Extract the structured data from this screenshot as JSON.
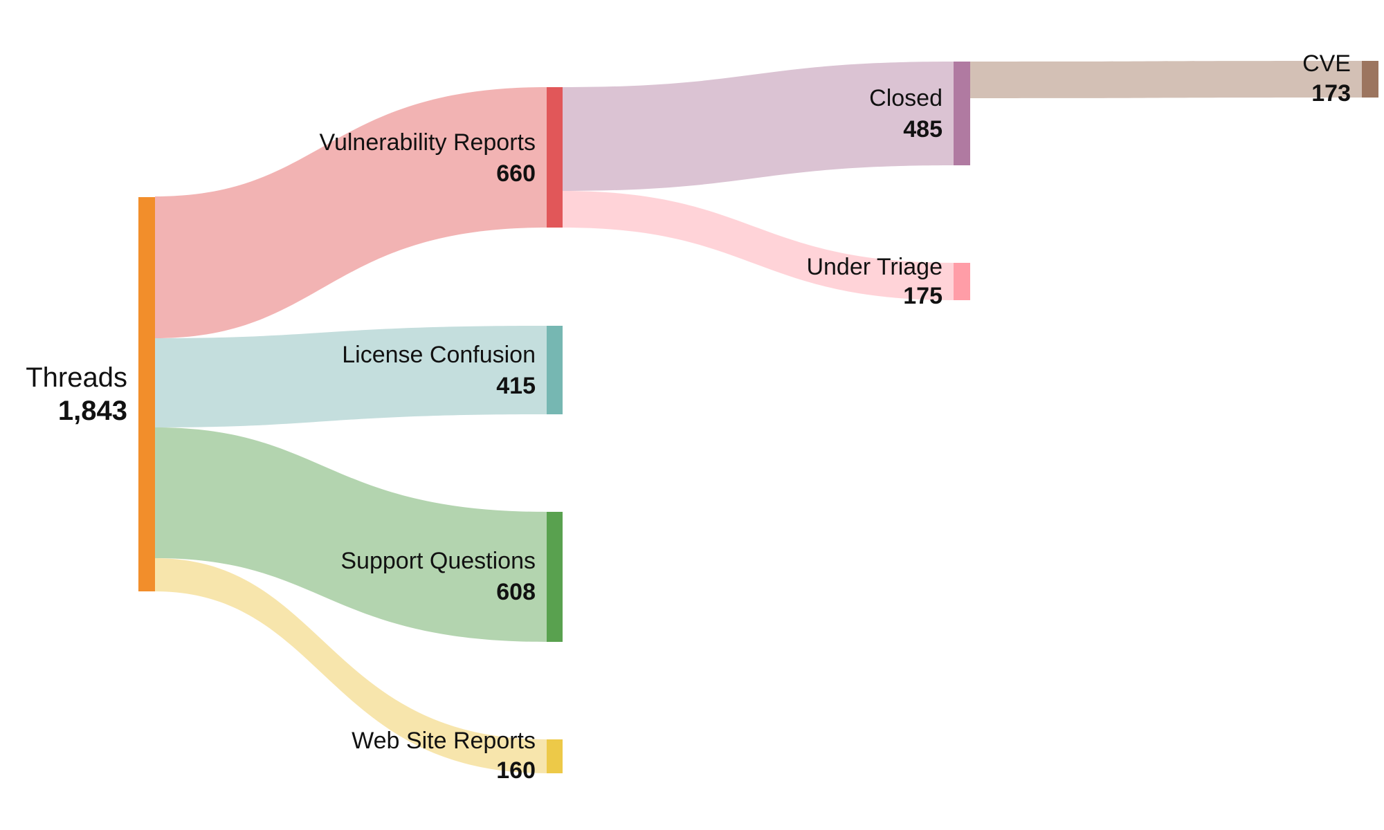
{
  "chart_data": {
    "type": "sankey",
    "nodes": [
      {
        "id": "threads",
        "label": "Threads",
        "value": "1,843",
        "color": "#F28E2B"
      },
      {
        "id": "vuln",
        "label": "Vulnerability Reports",
        "value": "660",
        "color": "#E15759"
      },
      {
        "id": "license",
        "label": "License Confusion",
        "value": "415",
        "color": "#76B7B2"
      },
      {
        "id": "support",
        "label": "Support Questions",
        "value": "608",
        "color": "#59A14F"
      },
      {
        "id": "website",
        "label": "Web Site Reports",
        "value": "160",
        "color": "#EDC948"
      },
      {
        "id": "closed",
        "label": "Closed",
        "value": "485",
        "color": "#B07AA1"
      },
      {
        "id": "triage",
        "label": "Under Triage",
        "value": "175",
        "color": "#FF9DA7"
      },
      {
        "id": "cve",
        "label": "CVE",
        "value": "173",
        "color": "#9C755F"
      }
    ],
    "links": [
      {
        "source": "threads",
        "target": "vuln",
        "value": 660,
        "color": "#F2B3B3"
      },
      {
        "source": "threads",
        "target": "license",
        "value": 415,
        "color": "#C4DEDD"
      },
      {
        "source": "threads",
        "target": "support",
        "value": 608,
        "color": "#B3D4AF"
      },
      {
        "source": "threads",
        "target": "website",
        "value": 160,
        "color": "#F7E5AC"
      },
      {
        "source": "vuln",
        "target": "closed",
        "value": 485,
        "color": "#DBC3D3"
      },
      {
        "source": "vuln",
        "target": "triage",
        "value": 175,
        "color": "#FFD3D8"
      },
      {
        "source": "closed",
        "target": "cve",
        "value": 173,
        "color": "#D3C0B5"
      }
    ]
  }
}
